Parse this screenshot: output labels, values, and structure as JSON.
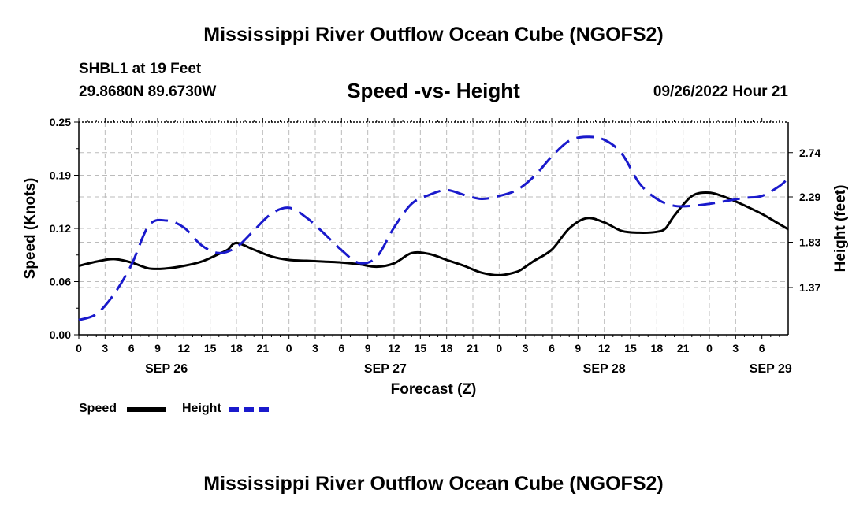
{
  "header": {
    "title": "Mississippi River Outflow Ocean Cube (NGOFS2)",
    "station": "SHBL1 at 19 Feet",
    "coordinates": "29.8680N  89.6730W",
    "subtitle": "Speed -vs- Height",
    "datetime": "09/26/2022 Hour 21"
  },
  "footer": {
    "title": "Mississippi River Outflow Ocean Cube (NGOFS2)"
  },
  "legend": {
    "speed_label": "Speed",
    "height_label": "Height"
  },
  "colors": {
    "speed": "#000000",
    "height": "#1a1acc",
    "grid": "#bbbbbb"
  },
  "chart_data": {
    "type": "line",
    "title": "Speed -vs- Height",
    "xlabel": "Forecast (Z)",
    "ylabel": "Speed (Knots)",
    "y2label": "Height (feet)",
    "x_range": [
      0,
      81
    ],
    "ylim": [
      0,
      0.25
    ],
    "y_ticks": [
      "0.00",
      "0.06",
      "0.12",
      "0.19",
      "0.25"
    ],
    "y2lim": [
      0.89,
      3.05
    ],
    "y2_ticks": [
      "1.37",
      "1.83",
      "2.29",
      "2.74"
    ],
    "x_ticks": [
      "0",
      "3",
      "6",
      "9",
      "12",
      "15",
      "18",
      "21",
      "0",
      "3",
      "6",
      "9",
      "12",
      "15",
      "18",
      "21",
      "0",
      "3",
      "6",
      "9",
      "12",
      "15",
      "18",
      "21",
      "0",
      "3",
      "6"
    ],
    "date_labels": [
      {
        "label": "SEP 26",
        "x": 10
      },
      {
        "label": "SEP 27",
        "x": 35
      },
      {
        "label": "SEP 28",
        "x": 60
      },
      {
        "label": "SEP 29",
        "x": 79
      }
    ],
    "grid": true,
    "legend": "bottom-left",
    "series": [
      {
        "name": "Speed",
        "axis": "left",
        "style": "solid",
        "x": [
          0,
          2,
          4,
          6,
          8,
          10,
          12,
          14,
          16,
          17,
          18,
          20,
          22,
          24,
          26,
          28,
          30,
          32,
          34,
          36,
          38,
          40,
          42,
          44,
          46,
          48,
          50,
          51,
          52,
          54,
          56,
          58,
          60,
          62,
          64,
          66,
          67,
          68,
          70,
          72,
          74,
          76,
          78,
          80,
          81
        ],
        "values": [
          0.081,
          0.086,
          0.089,
          0.085,
          0.078,
          0.078,
          0.081,
          0.086,
          0.095,
          0.1,
          0.108,
          0.1,
          0.092,
          0.088,
          0.087,
          0.086,
          0.085,
          0.083,
          0.08,
          0.084,
          0.096,
          0.095,
          0.088,
          0.081,
          0.073,
          0.07,
          0.074,
          0.08,
          0.087,
          0.1,
          0.125,
          0.137,
          0.132,
          0.122,
          0.12,
          0.121,
          0.125,
          0.14,
          0.163,
          0.167,
          0.161,
          0.152,
          0.142,
          0.13,
          0.124
        ]
      },
      {
        "name": "Height",
        "axis": "right",
        "style": "dashed",
        "x": [
          0,
          2,
          4,
          6,
          8,
          10,
          12,
          14,
          16,
          18,
          20,
          22,
          24,
          26,
          28,
          30,
          32,
          34,
          36,
          38,
          40,
          42,
          44,
          46,
          48,
          50,
          52,
          54,
          56,
          58,
          60,
          62,
          64,
          66,
          68,
          70,
          72,
          74,
          76,
          78,
          80,
          81
        ],
        "values": [
          1.04,
          1.1,
          1.3,
          1.6,
          2.0,
          2.05,
          1.98,
          1.8,
          1.72,
          1.78,
          1.95,
          2.12,
          2.18,
          2.08,
          1.92,
          1.75,
          1.62,
          1.68,
          1.98,
          2.22,
          2.31,
          2.36,
          2.31,
          2.27,
          2.3,
          2.36,
          2.5,
          2.7,
          2.86,
          2.9,
          2.87,
          2.73,
          2.43,
          2.27,
          2.2,
          2.2,
          2.22,
          2.25,
          2.28,
          2.3,
          2.4,
          2.48
        ]
      }
    ]
  }
}
